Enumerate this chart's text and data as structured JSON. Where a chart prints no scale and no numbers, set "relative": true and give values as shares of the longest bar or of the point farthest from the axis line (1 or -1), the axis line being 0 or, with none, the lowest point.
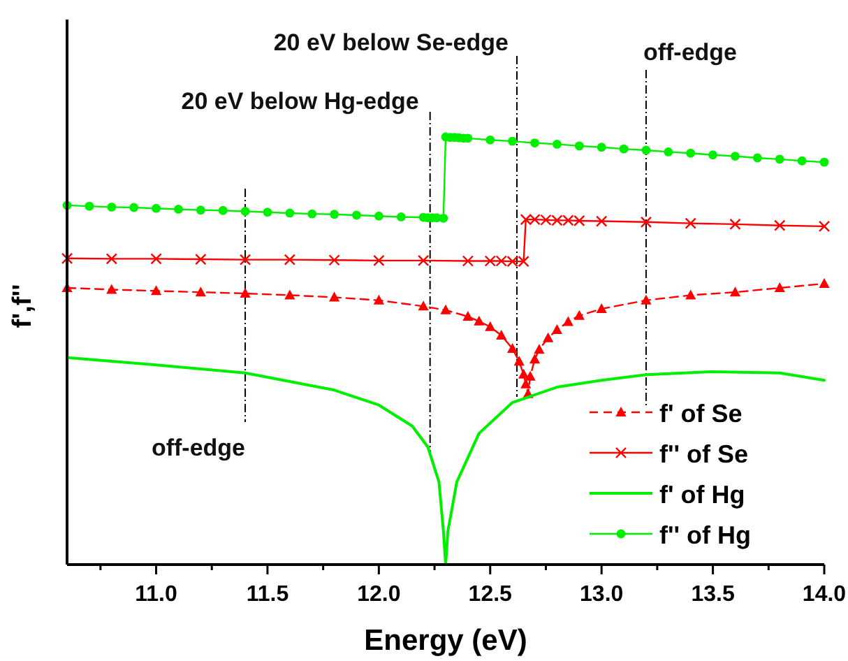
{
  "chart_data": {
    "type": "line",
    "relative": true,
    "xlabel": "Energy (eV)",
    "ylabel": "f',f''",
    "xlim": [
      10.6,
      14.0
    ],
    "xticks": [
      {
        "value": 10.75,
        "label": null
      },
      {
        "value": 11.0,
        "label": "11.0"
      },
      {
        "value": 11.25,
        "label": null
      },
      {
        "value": 11.5,
        "label": "11.5"
      },
      {
        "value": 11.75,
        "label": null
      },
      {
        "value": 12.0,
        "label": "12.0"
      },
      {
        "value": 12.25,
        "label": null
      },
      {
        "value": 12.5,
        "label": "12.5"
      },
      {
        "value": 12.75,
        "label": null
      },
      {
        "value": 13.0,
        "label": "13.0"
      },
      {
        "value": 13.25,
        "label": null
      },
      {
        "value": 13.5,
        "label": "13.5"
      },
      {
        "value": 13.75,
        "label": null
      },
      {
        "value": 14.0,
        "label": "14.0"
      }
    ],
    "legend": "bottom right",
    "grid": false,
    "series": [
      {
        "name": "f' of Se",
        "color": "#ff0000",
        "marker": "triangle",
        "line_style": "dashed",
        "x": [
          10.6,
          10.8,
          11.0,
          11.2,
          11.4,
          11.6,
          11.8,
          12.0,
          12.2,
          12.3,
          12.4,
          12.45,
          12.5,
          12.55,
          12.6,
          12.63,
          12.65,
          12.66,
          12.67,
          12.68,
          12.7,
          12.72,
          12.76,
          12.8,
          12.85,
          12.9,
          13.0,
          13.2,
          13.4,
          13.6,
          13.8,
          14.0
        ],
        "values": [
          0.647,
          0.643,
          0.64,
          0.637,
          0.634,
          0.63,
          0.625,
          0.618,
          0.604,
          0.595,
          0.58,
          0.569,
          0.556,
          0.536,
          0.505,
          0.475,
          0.445,
          0.422,
          0.399,
          0.44,
          0.48,
          0.503,
          0.53,
          0.549,
          0.568,
          0.582,
          0.598,
          0.618,
          0.63,
          0.637,
          0.647,
          0.657
        ]
      },
      {
        "name": "f'' of Se",
        "color": "#ff0000",
        "marker": "cross",
        "line_style": "solid",
        "x": [
          10.6,
          10.8,
          11.0,
          11.2,
          11.4,
          11.6,
          11.8,
          12.0,
          12.2,
          12.4,
          12.5,
          12.55,
          12.6,
          12.65,
          12.66,
          12.7,
          12.75,
          12.8,
          12.85,
          12.9,
          13.0,
          13.2,
          13.4,
          13.6,
          13.8,
          14.0
        ],
        "values": [
          0.716,
          0.715,
          0.715,
          0.714,
          0.713,
          0.713,
          0.712,
          0.711,
          0.711,
          0.71,
          0.71,
          0.71,
          0.709,
          0.709,
          0.807,
          0.807,
          0.806,
          0.805,
          0.805,
          0.804,
          0.803,
          0.801,
          0.798,
          0.796,
          0.793,
          0.791
        ]
      },
      {
        "name": "f' of Hg",
        "color": "#00ee00",
        "marker": "none",
        "line_style": "solid",
        "x": [
          10.6,
          11.0,
          11.4,
          11.8,
          12.0,
          12.15,
          12.22,
          12.27,
          12.29,
          12.3,
          12.31,
          12.35,
          12.45,
          12.6,
          12.8,
          13.0,
          13.2,
          13.5,
          13.8,
          14.0
        ],
        "values": [
          0.484,
          0.467,
          0.448,
          0.408,
          0.373,
          0.324,
          0.275,
          0.193,
          0.078,
          0,
          0.078,
          0.193,
          0.307,
          0.379,
          0.415,
          0.431,
          0.444,
          0.451,
          0.448,
          0.431
        ]
      },
      {
        "name": "f'' of Hg",
        "color": "#00ee00",
        "marker": "circle",
        "line_style": "solid",
        "x": [
          10.6,
          10.7,
          10.8,
          10.9,
          11.0,
          11.1,
          11.2,
          11.3,
          11.4,
          11.5,
          11.6,
          11.7,
          11.8,
          11.9,
          12.0,
          12.1,
          12.2,
          12.22,
          12.24,
          12.26,
          12.28,
          12.29,
          12.3,
          12.32,
          12.34,
          12.36,
          12.38,
          12.4,
          12.5,
          12.6,
          12.7,
          12.8,
          12.9,
          13.0,
          13.1,
          13.2,
          13.3,
          13.4,
          13.5,
          13.6,
          13.7,
          13.8,
          13.9,
          14.0
        ],
        "values": [
          0.84,
          0.838,
          0.836,
          0.835,
          0.833,
          0.831,
          0.829,
          0.828,
          0.826,
          0.824,
          0.822,
          0.82,
          0.819,
          0.817,
          0.815,
          0.813,
          0.812,
          0.811,
          0.811,
          0.811,
          null,
          0.81,
          1.0,
          0.999,
          0.999,
          0.998,
          0.997,
          0.997,
          0.993,
          0.99,
          0.986,
          0.983,
          0.979,
          0.976,
          0.972,
          0.969,
          0.965,
          0.962,
          0.958,
          0.955,
          0.951,
          0.948,
          0.944,
          0.941
        ]
      }
    ],
    "ref_lines": [
      {
        "axis": "x",
        "value": 11.4,
        "label": "off-edge",
        "line_style": "dashdot",
        "color": "#000000"
      },
      {
        "axis": "x",
        "value": 12.23,
        "label": "20 eV below Hg-edge",
        "line_style": "dashdot",
        "color": "#000000"
      },
      {
        "axis": "x",
        "value": 12.62,
        "label": "20 eV below Se-edge",
        "line_style": "dashdot",
        "color": "#000000"
      },
      {
        "axis": "x",
        "value": 13.2,
        "label": "off-edge",
        "line_style": "dashdot",
        "color": "#000000"
      }
    ]
  }
}
